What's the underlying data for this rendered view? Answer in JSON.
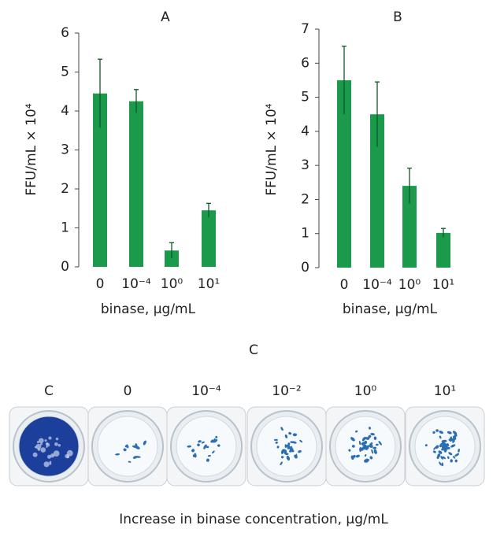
{
  "chart_data": [
    {
      "type": "bar",
      "title": "A",
      "y_label": "FFU/mL × 10⁴",
      "x_label": "binase, μg/mL",
      "categories": [
        "0",
        "10⁻⁴",
        "10⁰",
        "10¹"
      ],
      "values": [
        4.45,
        4.25,
        0.42,
        1.45
      ],
      "errors": [
        0.88,
        0.3,
        0.2,
        0.18
      ],
      "color": "#1a9a4a",
      "ylim": [
        0,
        6
      ],
      "yticks": [
        0,
        1,
        2,
        3,
        4,
        5,
        6
      ]
    },
    {
      "type": "bar",
      "title": "B",
      "y_label": "FFU/mL × 10⁴",
      "x_label": "binase, μg/mL",
      "categories": [
        "0",
        "10⁻⁴",
        "10⁰",
        "10¹"
      ],
      "values": [
        5.5,
        4.5,
        2.4,
        1.02
      ],
      "errors": [
        1.0,
        0.95,
        0.52,
        0.13
      ],
      "color": "#1a9a4a",
      "ylim": [
        0,
        7
      ],
      "yticks": [
        0,
        1,
        2,
        3,
        4,
        5,
        6,
        7
      ]
    }
  ],
  "panel_c": {
    "title": "C",
    "wells": [
      "C",
      "0",
      "10⁻⁴",
      "10⁻²",
      "10⁰",
      "10¹"
    ],
    "caption": "Increase in binase concentration, μg/mL"
  }
}
